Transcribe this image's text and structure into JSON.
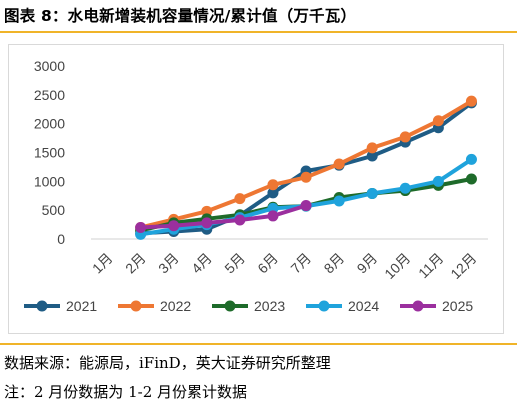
{
  "title": "图表 8：水电新增装机容量情况/累计值（万千瓦）",
  "source": "数据来源：能源局，iFinD，英大证券研究所整理",
  "footnote": "注：2 月份数据为 1-2 月份累计数据",
  "chart_data": {
    "type": "line",
    "categories": [
      "1月",
      "2月",
      "3月",
      "4月",
      "5月",
      "6月",
      "7月",
      "8月",
      "9月",
      "10月",
      "11月",
      "12月"
    ],
    "ylim": [
      0,
      3000
    ],
    "yticks": [
      0,
      500,
      1000,
      1500,
      2000,
      2500,
      3000
    ],
    "grid": false,
    "legend_position": "bottom",
    "series": [
      {
        "name": "2021",
        "color": "#1f5c85",
        "values": [
          null,
          100,
          130,
          170,
          410,
          800,
          1180,
          1280,
          1440,
          1680,
          1930,
          2360
        ]
      },
      {
        "name": "2022",
        "color": "#ee7733",
        "values": [
          null,
          200,
          340,
          480,
          700,
          940,
          1070,
          1300,
          1580,
          1770,
          2050,
          2390
        ]
      },
      {
        "name": "2023",
        "color": "#1e6b2a",
        "values": [
          null,
          150,
          280,
          350,
          420,
          550,
          570,
          720,
          790,
          840,
          930,
          1040
        ]
      },
      {
        "name": "2024",
        "color": "#1fa3dc",
        "values": [
          null,
          80,
          170,
          250,
          370,
          530,
          570,
          660,
          790,
          880,
          1000,
          1380
        ]
      },
      {
        "name": "2025",
        "color": "#9b2f9e",
        "values": [
          null,
          200,
          230,
          280,
          330,
          400,
          580,
          null,
          null,
          null,
          null,
          null
        ]
      }
    ]
  }
}
